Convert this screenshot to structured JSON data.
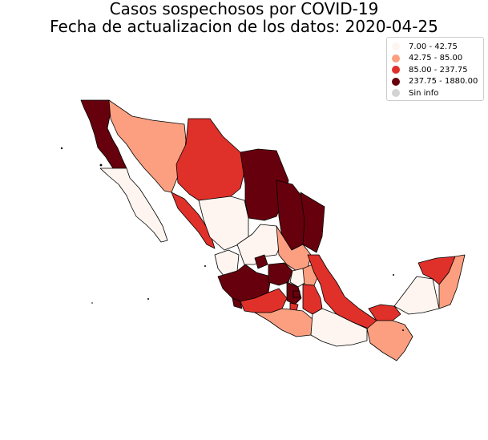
{
  "title_line1": "Casos sospechosos por COVID-19",
  "title_line2": "Fecha de actualizacion de los datos: 2020-04-25",
  "legend": [
    {
      "label": "7.00 - 42.75",
      "color": "#fff5f0"
    },
    {
      "label": "42.75 - 85.00",
      "color": "#fb9f80"
    },
    {
      "label": "85.00 - 237.75",
      "color": "#e0302a"
    },
    {
      "label": "237.75 - 1880.00",
      "color": "#67000d"
    },
    {
      "label": "Sin info",
      "color": "#d3d3d3"
    }
  ],
  "class_colors": [
    "#fff5f0",
    "#fb9f80",
    "#e0302a",
    "#67000d"
  ]
}
